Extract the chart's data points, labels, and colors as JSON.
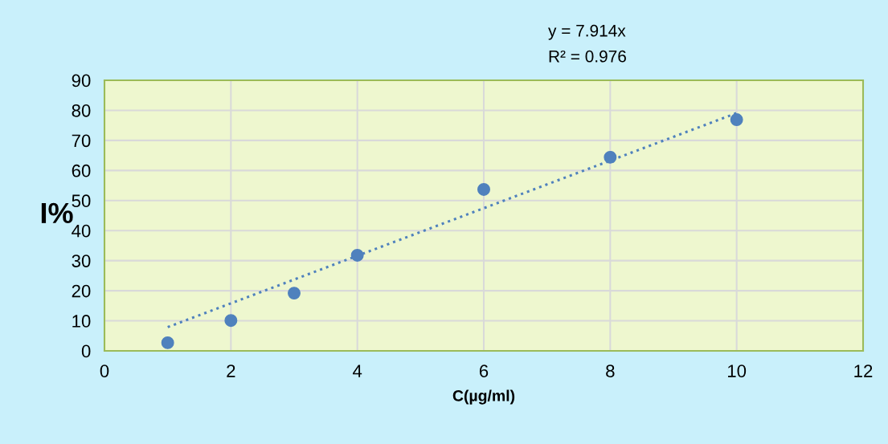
{
  "chart_data": {
    "type": "scatter",
    "xlabel": "C(µg/ml)",
    "ylabel": "I%",
    "annotations": [
      "y = 7.914x",
      "R² = 0.976"
    ],
    "series": [
      {
        "color": "#4f81bd",
        "x": [
          1,
          2,
          3,
          4,
          6,
          8,
          10
        ],
        "values": [
          2.7,
          10.1,
          19.2,
          31.8,
          53.7,
          64.4,
          76.9
        ],
        "marker": "circle"
      },
      {
        "type": "line",
        "color": "#4f81bd",
        "x": [
          1,
          10
        ],
        "values": [
          7.9,
          79.1
        ],
        "line_style": "dotted",
        "marker": "none"
      }
    ],
    "xlim": [
      0,
      12
    ],
    "xticks": [
      0,
      2,
      4,
      6,
      8,
      10,
      12
    ],
    "ylim": [
      0,
      90
    ],
    "yticks": [
      0,
      10,
      20,
      30,
      40,
      50,
      60,
      70,
      80,
      90
    ],
    "grid": true,
    "legend": false
  }
}
